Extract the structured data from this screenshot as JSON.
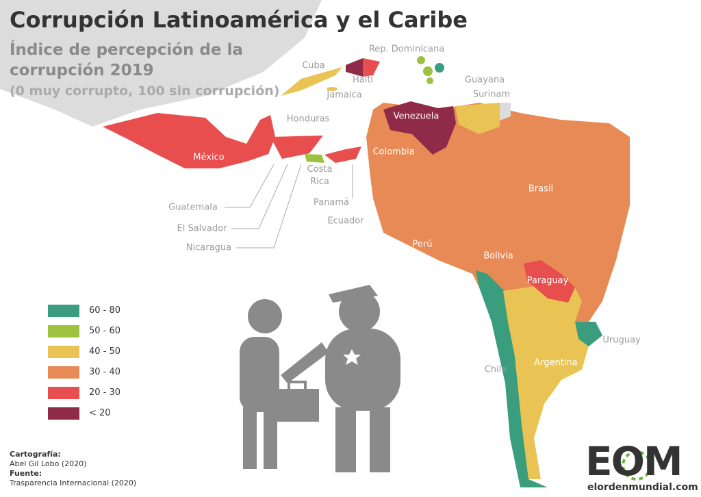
{
  "title": "Corrupción Latinoamérica y el Caribe",
  "subtitle": "Índice de percepción de la corrupción 2019",
  "note": "(0 muy corrupto, 100 sin corrupción)",
  "legend": [
    {
      "label": "60 - 80",
      "color": "#3a9e7e"
    },
    {
      "label": "50 - 60",
      "color": "#9dc23f"
    },
    {
      "label": "40 - 50",
      "color": "#e9c454"
    },
    {
      "label": "30 - 40",
      "color": "#e88a55"
    },
    {
      "label": "20 - 30",
      "color": "#e84e4e"
    },
    {
      "label": "< 20",
      "color": "#8f2a48"
    }
  ],
  "countries": [
    "México",
    "Honduras",
    "Guatemala",
    "El Salvador",
    "Nicaragua",
    "Costa Rica",
    "Panamá",
    "Ecuador",
    "Colombia",
    "Venezuela",
    "Cuba",
    "Haití",
    "Jamaica",
    "Rep. Dominicana",
    "Guayana",
    "Surinam",
    "Brasil",
    "Perú",
    "Bolivia",
    "Paraguay",
    "Uruguay",
    "Chile",
    "Argentina"
  ],
  "credits": {
    "cartography_label": "Cartografía:",
    "cartography": "Abel Gil Lobo (2020)",
    "source_label": "Fuente:",
    "source": "Trasparencia Internacional (2020)"
  },
  "logo": {
    "mark": "EOM",
    "url": "elordenmundial.com"
  }
}
